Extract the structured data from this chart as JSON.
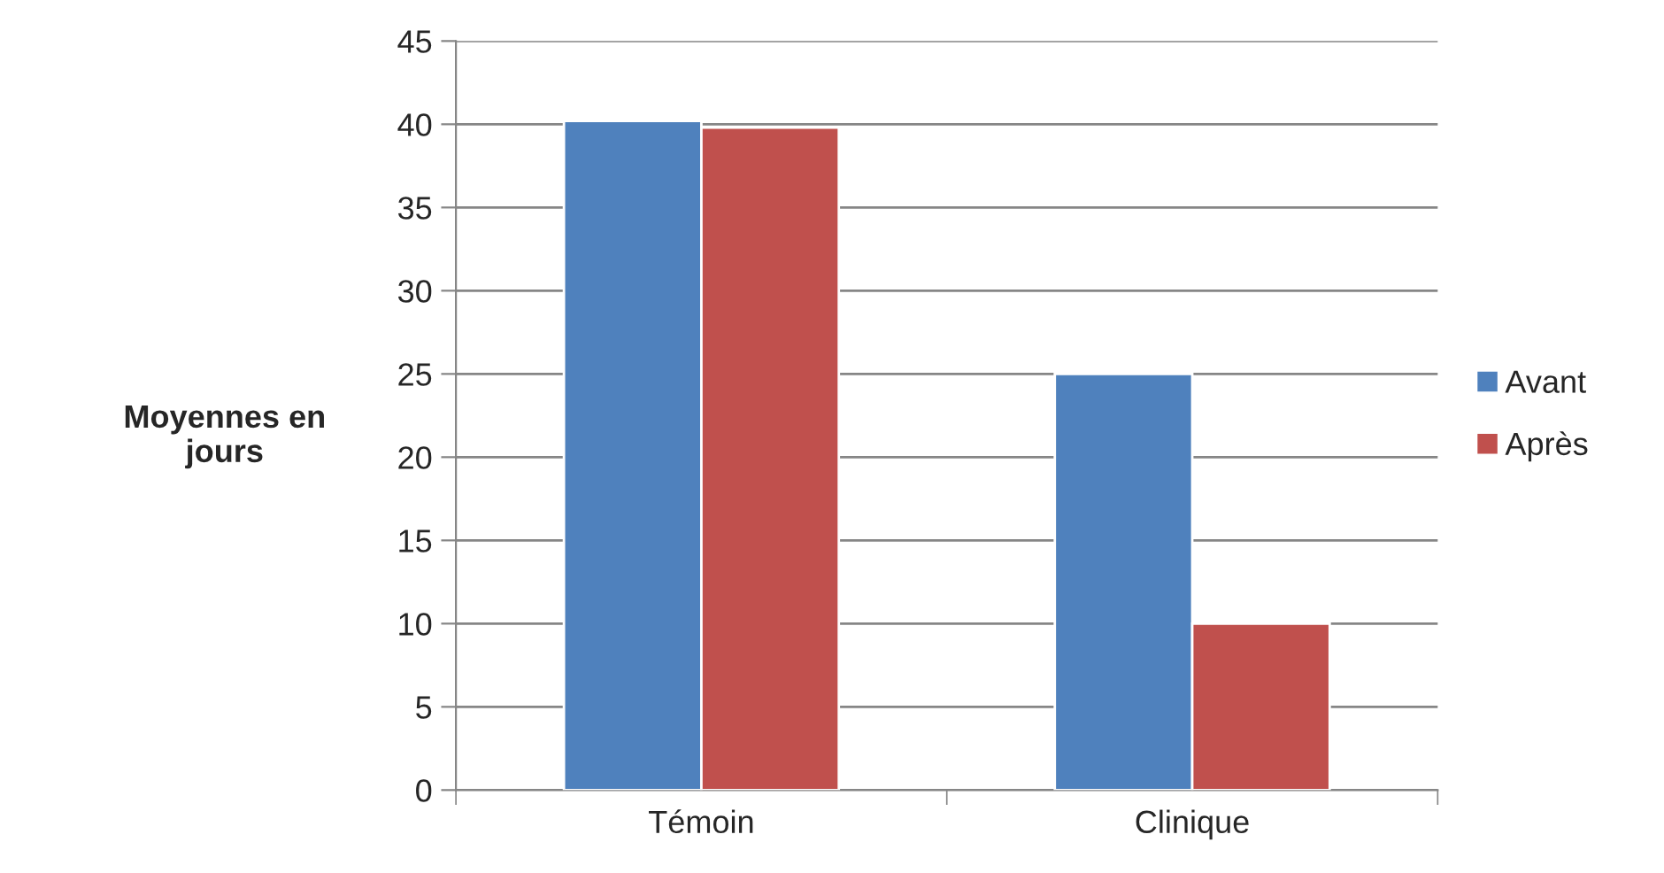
{
  "chart_data": {
    "type": "bar",
    "ylabel": "Moyennes en\njours",
    "categories": [
      "Témoin",
      "Clinique"
    ],
    "series": [
      {
        "name": "Avant",
        "color": "#4f81bd",
        "values": [
          40.2,
          25
        ]
      },
      {
        "name": "Après",
        "color": "#c0504d",
        "values": [
          39.8,
          10
        ]
      }
    ],
    "ylim": [
      0,
      45
    ],
    "yticks": [
      0,
      5,
      10,
      15,
      20,
      25,
      30,
      35,
      40,
      45
    ],
    "grid": "y",
    "legend": "right"
  }
}
